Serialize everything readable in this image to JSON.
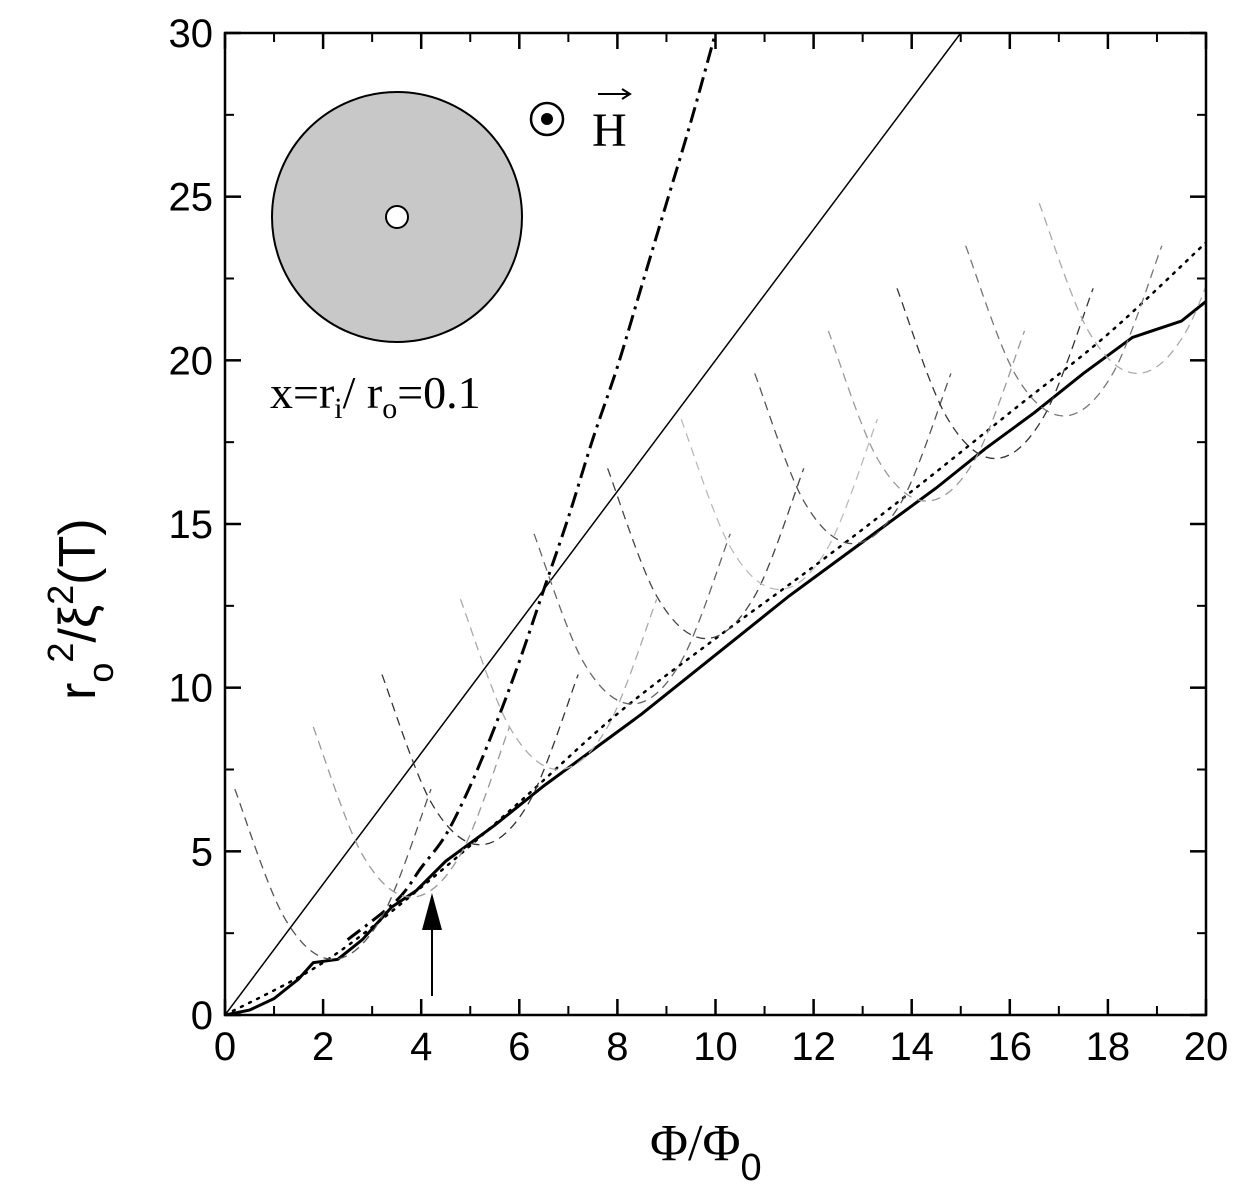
{
  "chart_data": {
    "type": "line",
    "x_label": [
      "Φ/Φ",
      "0"
    ],
    "y_label": [
      "r",
      "o",
      "2",
      "/ξ",
      "2",
      "(T)"
    ],
    "annotation": [
      "x=r",
      "i",
      "/ r",
      "o",
      "=0.1"
    ],
    "field_label": "H",
    "xlim": [
      0,
      20
    ],
    "ylim": [
      0,
      30
    ],
    "xticks": [
      0,
      2,
      4,
      6,
      8,
      10,
      12,
      14,
      16,
      18,
      20
    ],
    "yticks": [
      0,
      5,
      10,
      15,
      20,
      25,
      30
    ],
    "xminorticks": [
      1,
      3,
      5,
      7,
      9,
      11,
      13,
      15,
      17,
      19
    ],
    "yminorticks": [
      2.5,
      7.5,
      12.5,
      17.5,
      22.5,
      27.5
    ],
    "series": [
      {
        "color": "#000000",
        "style": "solid",
        "width": 1.5,
        "x": [
          0,
          15
        ],
        "values": [
          0,
          30
        ]
      },
      {
        "color": "#000000",
        "style": "dashdot",
        "width": 3,
        "smooth": true,
        "x": [
          2.5,
          3.5,
          4,
          4.5,
          5,
          5.5,
          6,
          6.5,
          7,
          7.5,
          8,
          8.5,
          9,
          9.5,
          10
        ],
        "values": [
          2.3,
          3.5,
          4.5,
          5.5,
          7,
          8.8,
          10.8,
          13,
          15.2,
          17.6,
          19.8,
          22.3,
          24.8,
          27.3,
          30
        ]
      },
      {
        "color": "#000000",
        "style": "dotted",
        "width": 2.5,
        "smooth": true,
        "x": [
          0,
          2,
          4,
          6,
          8,
          10,
          12,
          14,
          16,
          18,
          20
        ],
        "values": [
          0,
          1.6,
          3.9,
          6.5,
          9.2,
          11.5,
          13.7,
          16,
          18.4,
          20.8,
          23.6
        ]
      },
      {
        "color": "#000000",
        "style": "solid",
        "width": 3,
        "x": [
          0,
          0.5,
          1,
          1.5,
          1.8,
          2.3,
          2.8,
          3.4,
          3.9,
          4.5,
          5.5,
          6.5,
          7.5,
          8.5,
          9.5,
          10.5,
          11.5,
          12.5,
          13.5,
          14.5,
          15.5,
          16.5,
          17.5,
          18.5,
          19.5,
          20
        ],
        "values": [
          0,
          0.15,
          0.5,
          1.1,
          1.6,
          1.7,
          2.3,
          3.3,
          3.8,
          4.7,
          5.8,
          7.0,
          8.1,
          9.2,
          10.4,
          11.6,
          12.8,
          13.9,
          15.0,
          16.1,
          17.3,
          18.4,
          19.6,
          20.7,
          21.2,
          21.8
        ]
      },
      {
        "color": "#555555",
        "style": "dashed",
        "width": 1.3,
        "smooth": true,
        "x": [
          0.2,
          1.2,
          2.2,
          3.2,
          4.2
        ],
        "values": [
          6.9,
          3.0,
          1.7,
          3.0,
          6.9
        ]
      },
      {
        "color": "#999999",
        "style": "dashed",
        "width": 1.3,
        "smooth": true,
        "x": [
          1.8,
          2.8,
          3.8,
          4.8,
          5.8
        ],
        "values": [
          8.8,
          4.9,
          3.6,
          4.9,
          8.8
        ]
      },
      {
        "color": "#333333",
        "style": "dashed",
        "width": 1.3,
        "smooth": true,
        "x": [
          3.2,
          4.2,
          5.2,
          6.2,
          7.2
        ],
        "values": [
          10.4,
          6.5,
          5.2,
          6.5,
          10.4
        ]
      },
      {
        "color": "#aaaaaa",
        "style": "dashed",
        "width": 1.3,
        "smooth": true,
        "x": [
          4.8,
          5.8,
          6.8,
          7.8,
          8.8
        ],
        "values": [
          12.7,
          8.8,
          7.5,
          8.8,
          12.7
        ]
      },
      {
        "color": "#666666",
        "style": "dashed",
        "width": 1.3,
        "smooth": true,
        "x": [
          6.3,
          7.3,
          8.3,
          9.3,
          10.3
        ],
        "values": [
          14.7,
          10.8,
          9.5,
          10.8,
          14.7
        ]
      },
      {
        "color": "#444444",
        "style": "dashed",
        "width": 1.3,
        "smooth": true,
        "x": [
          7.8,
          8.8,
          9.8,
          10.8,
          11.8
        ],
        "values": [
          16.7,
          12.8,
          11.5,
          12.8,
          16.7
        ]
      },
      {
        "color": "#bbbbbb",
        "style": "dashed",
        "width": 1.3,
        "smooth": true,
        "x": [
          9.3,
          10.3,
          11.3,
          12.3,
          13.3
        ],
        "values": [
          18.2,
          14.3,
          13,
          14.3,
          18.2
        ]
      },
      {
        "color": "#555555",
        "style": "dashed",
        "width": 1.3,
        "smooth": true,
        "x": [
          10.8,
          11.8,
          12.8,
          13.8,
          14.8
        ],
        "values": [
          19.6,
          15.7,
          14.4,
          15.7,
          19.6
        ]
      },
      {
        "color": "#999999",
        "style": "dashed",
        "width": 1.3,
        "smooth": true,
        "x": [
          12.3,
          13.3,
          14.3,
          15.3,
          16.3
        ],
        "values": [
          20.9,
          17,
          15.7,
          17,
          20.9
        ]
      },
      {
        "color": "#333333",
        "style": "dashed",
        "width": 1.3,
        "smooth": true,
        "x": [
          13.7,
          14.7,
          15.7,
          16.7,
          17.7
        ],
        "values": [
          22.2,
          18.3,
          17,
          18.3,
          22.2
        ]
      },
      {
        "color": "#777777",
        "style": "dashed",
        "width": 1.3,
        "smooth": true,
        "x": [
          15.1,
          16.1,
          17.1,
          18.1,
          19.1
        ],
        "values": [
          23.5,
          19.6,
          18.3,
          19.6,
          23.5
        ]
      },
      {
        "color": "#aaaaaa",
        "style": "dashed",
        "width": 1.3,
        "smooth": true,
        "x": [
          16.6,
          17.6,
          18.6,
          19.6,
          20.6
        ],
        "values": [
          24.8,
          20.9,
          19.6,
          20.9,
          24.8
        ]
      }
    ]
  }
}
